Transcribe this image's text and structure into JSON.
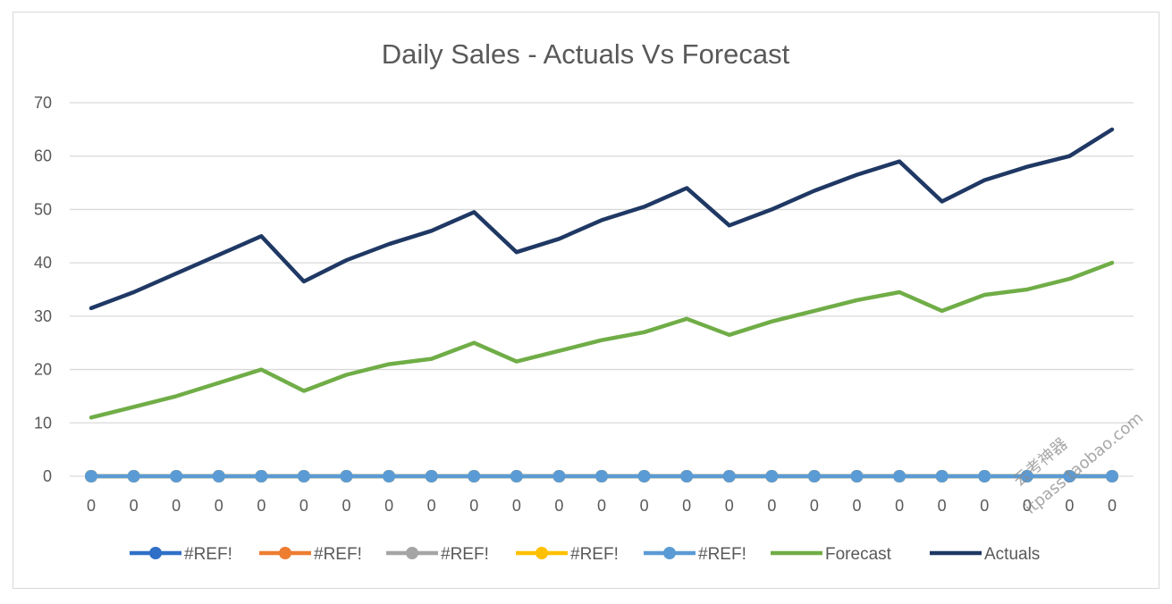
{
  "chart_data": {
    "type": "line",
    "title": "Daily Sales - Actuals Vs Forecast",
    "xlabel": "",
    "ylabel": "",
    "ylim": [
      0,
      70
    ],
    "yticks": [
      "0",
      "10",
      "20",
      "30",
      "40",
      "50",
      "60",
      "70"
    ],
    "categories": [
      "0",
      "0",
      "0",
      "0",
      "0",
      "0",
      "0",
      "0",
      "0",
      "0",
      "0",
      "0",
      "0",
      "0",
      "0",
      "0",
      "0",
      "0",
      "0",
      "0",
      "0",
      "0",
      "0",
      "0",
      "0"
    ],
    "grid": true,
    "legend_position": "bottom",
    "series": [
      {
        "name": "#REF!",
        "color": "#2f6fc7",
        "marker": true,
        "values": [
          0,
          0,
          0,
          0,
          0,
          0,
          0,
          0,
          0,
          0,
          0,
          0,
          0,
          0,
          0,
          0,
          0,
          0,
          0,
          0,
          0,
          0,
          0,
          0,
          0
        ]
      },
      {
        "name": "#REF!",
        "color": "#ed7d31",
        "marker": true,
        "values": [
          0,
          0,
          0,
          0,
          0,
          0,
          0,
          0,
          0,
          0,
          0,
          0,
          0,
          0,
          0,
          0,
          0,
          0,
          0,
          0,
          0,
          0,
          0,
          0,
          0
        ]
      },
      {
        "name": "#REF!",
        "color": "#a5a5a5",
        "marker": true,
        "values": [
          0,
          0,
          0,
          0,
          0,
          0,
          0,
          0,
          0,
          0,
          0,
          0,
          0,
          0,
          0,
          0,
          0,
          0,
          0,
          0,
          0,
          0,
          0,
          0,
          0
        ]
      },
      {
        "name": "#REF!",
        "color": "#ffc000",
        "marker": true,
        "values": [
          0,
          0,
          0,
          0,
          0,
          0,
          0,
          0,
          0,
          0,
          0,
          0,
          0,
          0,
          0,
          0,
          0,
          0,
          0,
          0,
          0,
          0,
          0,
          0,
          0
        ]
      },
      {
        "name": "#REF!",
        "color": "#5b9bd5",
        "marker": true,
        "values": [
          0,
          0,
          0,
          0,
          0,
          0,
          0,
          0,
          0,
          0,
          0,
          0,
          0,
          0,
          0,
          0,
          0,
          0,
          0,
          0,
          0,
          0,
          0,
          0,
          0
        ]
      },
      {
        "name": "Forecast",
        "color": "#70ad47",
        "marker": false,
        "values": [
          11,
          13,
          15,
          17.5,
          20,
          16,
          19,
          21,
          22,
          25,
          21.5,
          23.5,
          25.5,
          27,
          29.5,
          26.5,
          29,
          31,
          33,
          34.5,
          31,
          34,
          35,
          37,
          40
        ]
      },
      {
        "name": "Actuals",
        "color": "#1f3864",
        "marker": false,
        "values": [
          31.5,
          34.5,
          38,
          41.5,
          45,
          36.5,
          40.5,
          43.5,
          46,
          49.5,
          42,
          44.5,
          48,
          50.5,
          54,
          47,
          50,
          53.5,
          56.5,
          59,
          51.5,
          55.5,
          58,
          60,
          65
        ]
      }
    ]
  },
  "watermark": {
    "line1": "云考神器",
    "line2": "itpass.taobao.com"
  }
}
